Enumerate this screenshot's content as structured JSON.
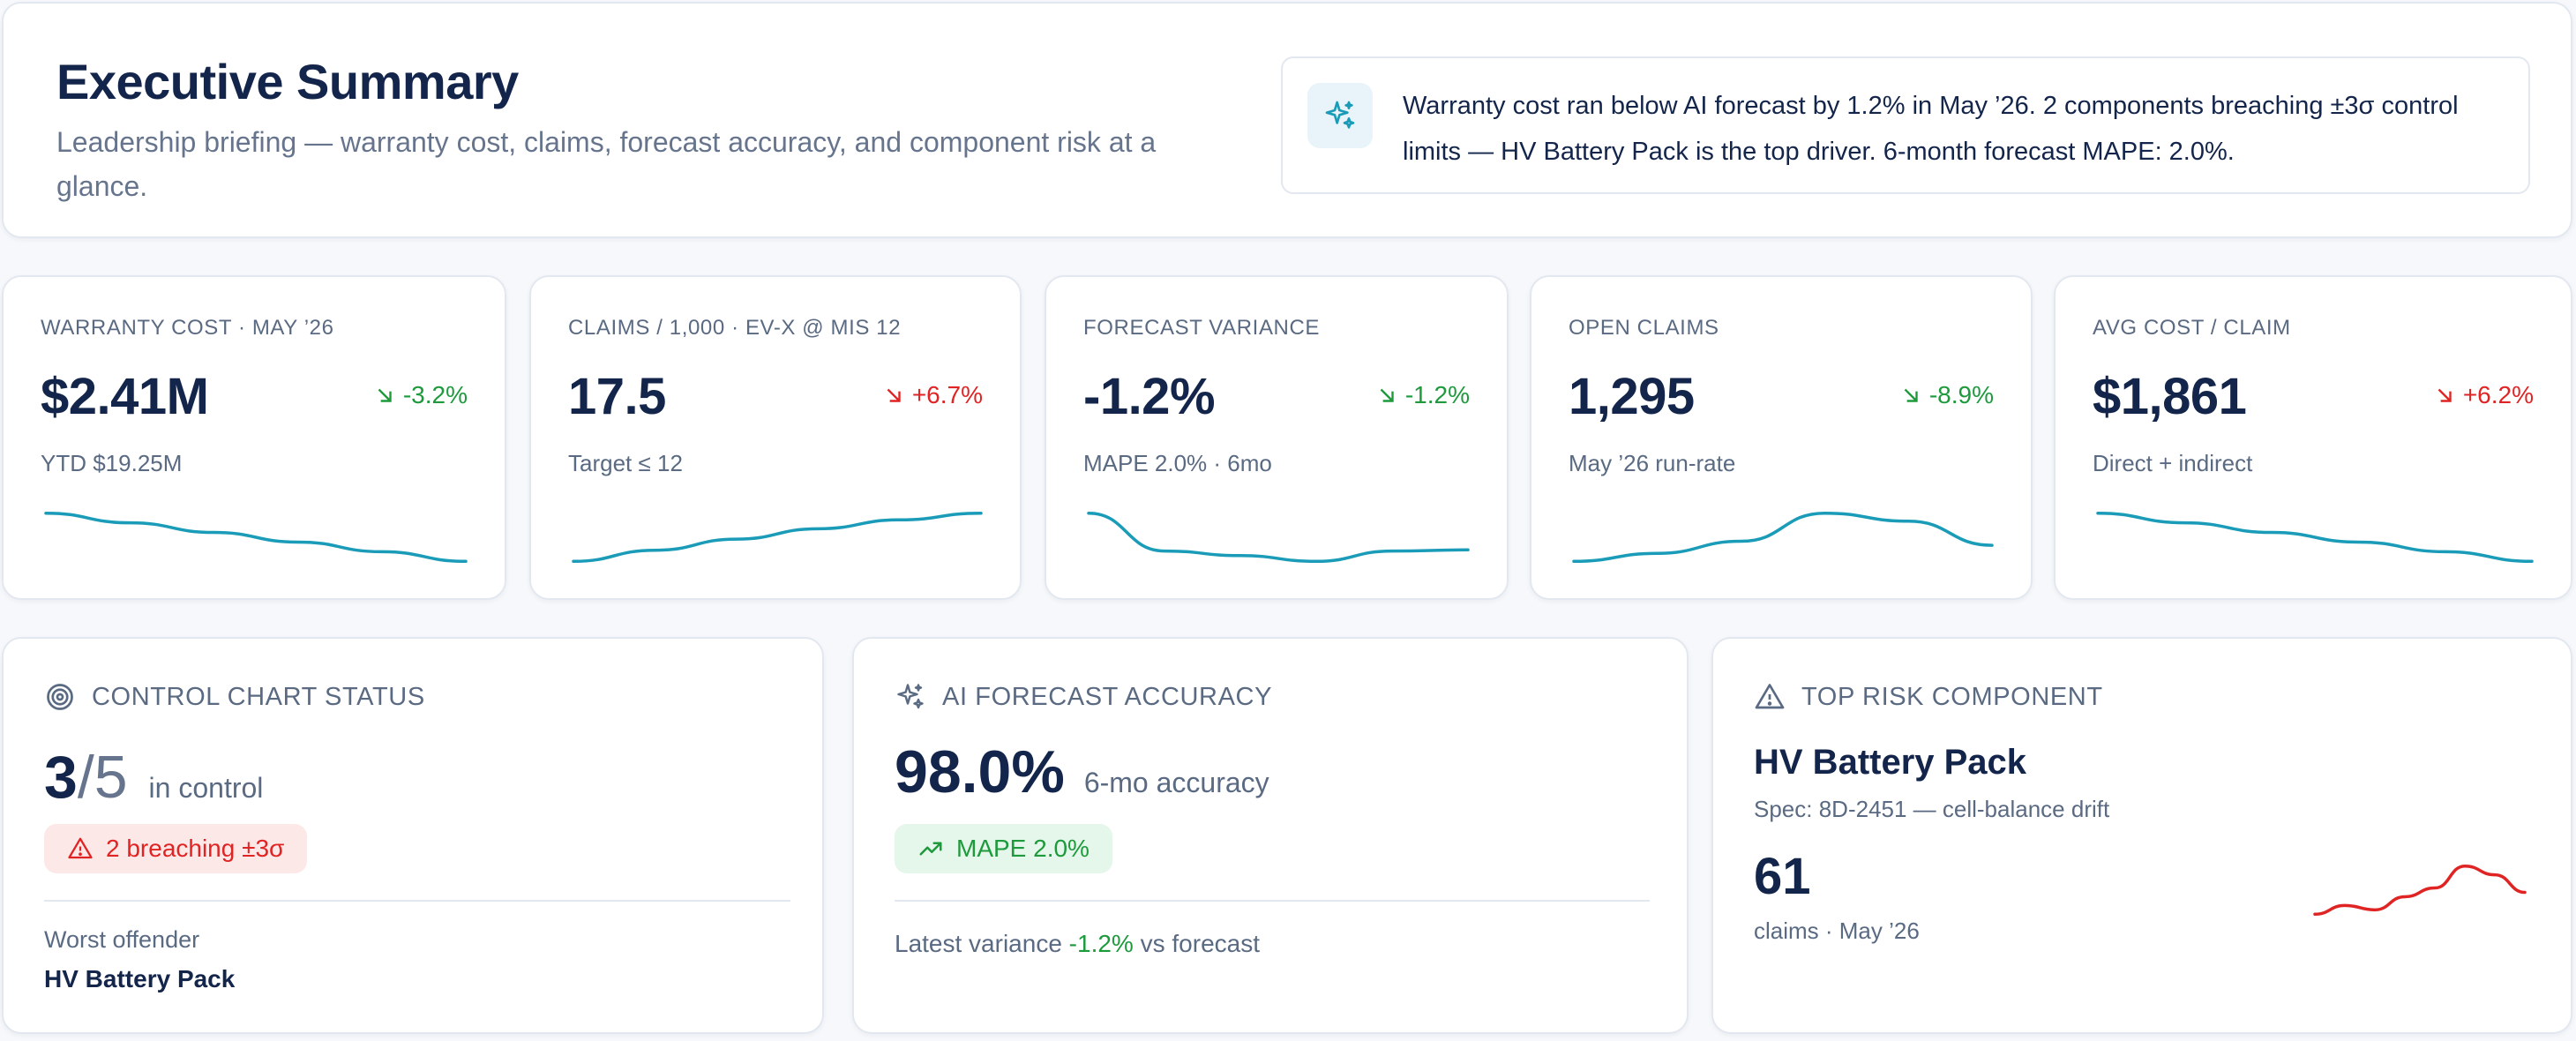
{
  "header": {
    "title": "Executive Summary",
    "subtitle": "Leadership briefing — warranty cost, claims, forecast accuracy, and component risk at a glance.",
    "insight_icon": "sparkles-icon",
    "insight": "Warranty cost ran below AI forecast by 1.2% in May ’26. 2 components breaching ±3σ control limits — HV Battery Pack is the top driver. 6-month forecast MAPE: 2.0%."
  },
  "colors": {
    "accent": "#1a9bb8",
    "good": "#1e9a3c",
    "bad": "#e02424",
    "good_bg": "#e5f6ea",
    "bad_bg": "#fde8e8",
    "title": "#13254a",
    "muted": "#5a6a82"
  },
  "kpis": [
    {
      "label": "WARRANTY COST · MAY ’26",
      "value": "$2.41M",
      "delta": "-3.2%",
      "trend": "down",
      "status": "good",
      "sub": "YTD $19.25M",
      "spark": [
        55,
        54,
        53,
        52,
        51,
        50
      ]
    },
    {
      "label": "CLAIMS / 1,000 · EV-X @ MIS 12",
      "value": "17.5",
      "delta": "+6.7%",
      "trend": "down",
      "status": "bad",
      "sub": "Target ≤ 12",
      "spark": [
        11,
        12.5,
        14,
        15.4,
        16.6,
        17.5
      ]
    },
    {
      "label": "FORECAST VARIANCE",
      "value": "-1.2%",
      "delta": "-1.2%",
      "trend": "down",
      "status": "good",
      "sub": "MAPE 2.0% · 6mo",
      "spark": [
        4.5,
        1.2,
        0.8,
        0.3,
        1.2,
        1.3
      ]
    },
    {
      "label": "OPEN CLAIMS",
      "value": "1,295",
      "delta": "-8.9%",
      "trend": "down",
      "status": "good",
      "sub": "May ’26 run-rate",
      "spark": [
        40,
        42,
        45,
        52,
        50,
        44
      ]
    },
    {
      "label": "AVG COST / CLAIM",
      "value": "$1,861",
      "delta": "+6.2%",
      "trend": "down",
      "status": "bad",
      "sub": "Direct + indirect",
      "spark": [
        60,
        58,
        56,
        54,
        52,
        50
      ]
    }
  ],
  "control_chart": {
    "icon": "target-icon",
    "title": "CONTROL CHART STATUS",
    "in_control": "3",
    "total": "/5",
    "caption": "in control",
    "badge_icon": "warning-icon",
    "badge": "2 breaching ±3σ",
    "worst_label": "Worst offender",
    "worst_value": "HV Battery Pack"
  },
  "ai_forecast": {
    "icon": "sparkles-icon",
    "title": "AI FORECAST ACCURACY",
    "accuracy": "98.0%",
    "caption": "6-mo accuracy",
    "badge_icon": "trend-up-icon",
    "badge": "MAPE 2.0%",
    "latest_prefix": "Latest variance",
    "latest_value": "-1.2%",
    "latest_suffix": "vs forecast"
  },
  "top_risk": {
    "icon": "warning-icon",
    "title": "TOP RISK COMPONENT",
    "name": "HV Battery Pack",
    "spec": "Spec: 8D-2451 — cell-balance drift",
    "count": "61",
    "count_caption": "claims · May ’26",
    "spark": [
      40,
      44,
      42,
      48,
      52,
      62,
      58,
      50
    ]
  }
}
